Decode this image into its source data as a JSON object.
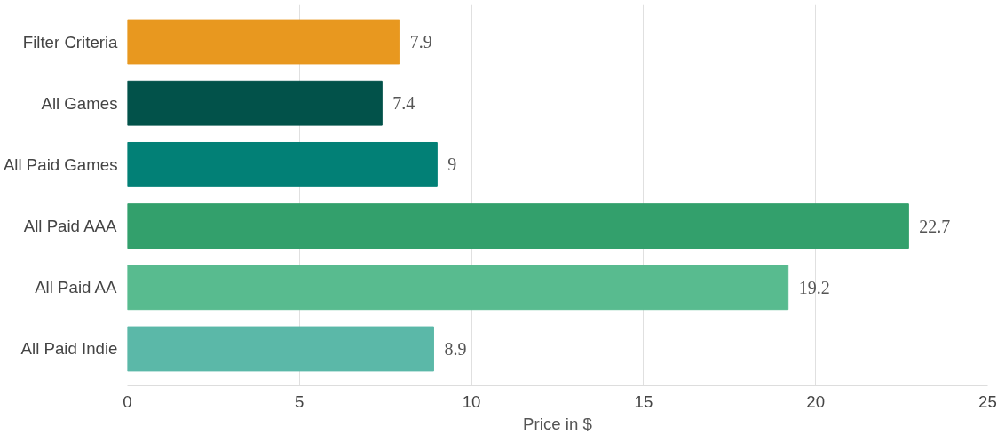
{
  "chart_data": {
    "type": "bar",
    "orientation": "horizontal",
    "xlabel": "Price in $",
    "categories": [
      "Filter Criteria",
      "All Games",
      "All Paid Games",
      "All Paid AAA",
      "All Paid AA",
      "All Paid Indie"
    ],
    "values": [
      7.9,
      7.4,
      9,
      22.7,
      19.2,
      8.9
    ],
    "colors": [
      "#e8981f",
      "#02524a",
      "#028076",
      "#33a06c",
      "#58bb8f",
      "#5bb8a8"
    ],
    "xlim": [
      0,
      25
    ],
    "xticks": [
      0,
      5,
      10,
      15,
      20,
      25
    ],
    "grid": "x",
    "data_labels": true
  }
}
